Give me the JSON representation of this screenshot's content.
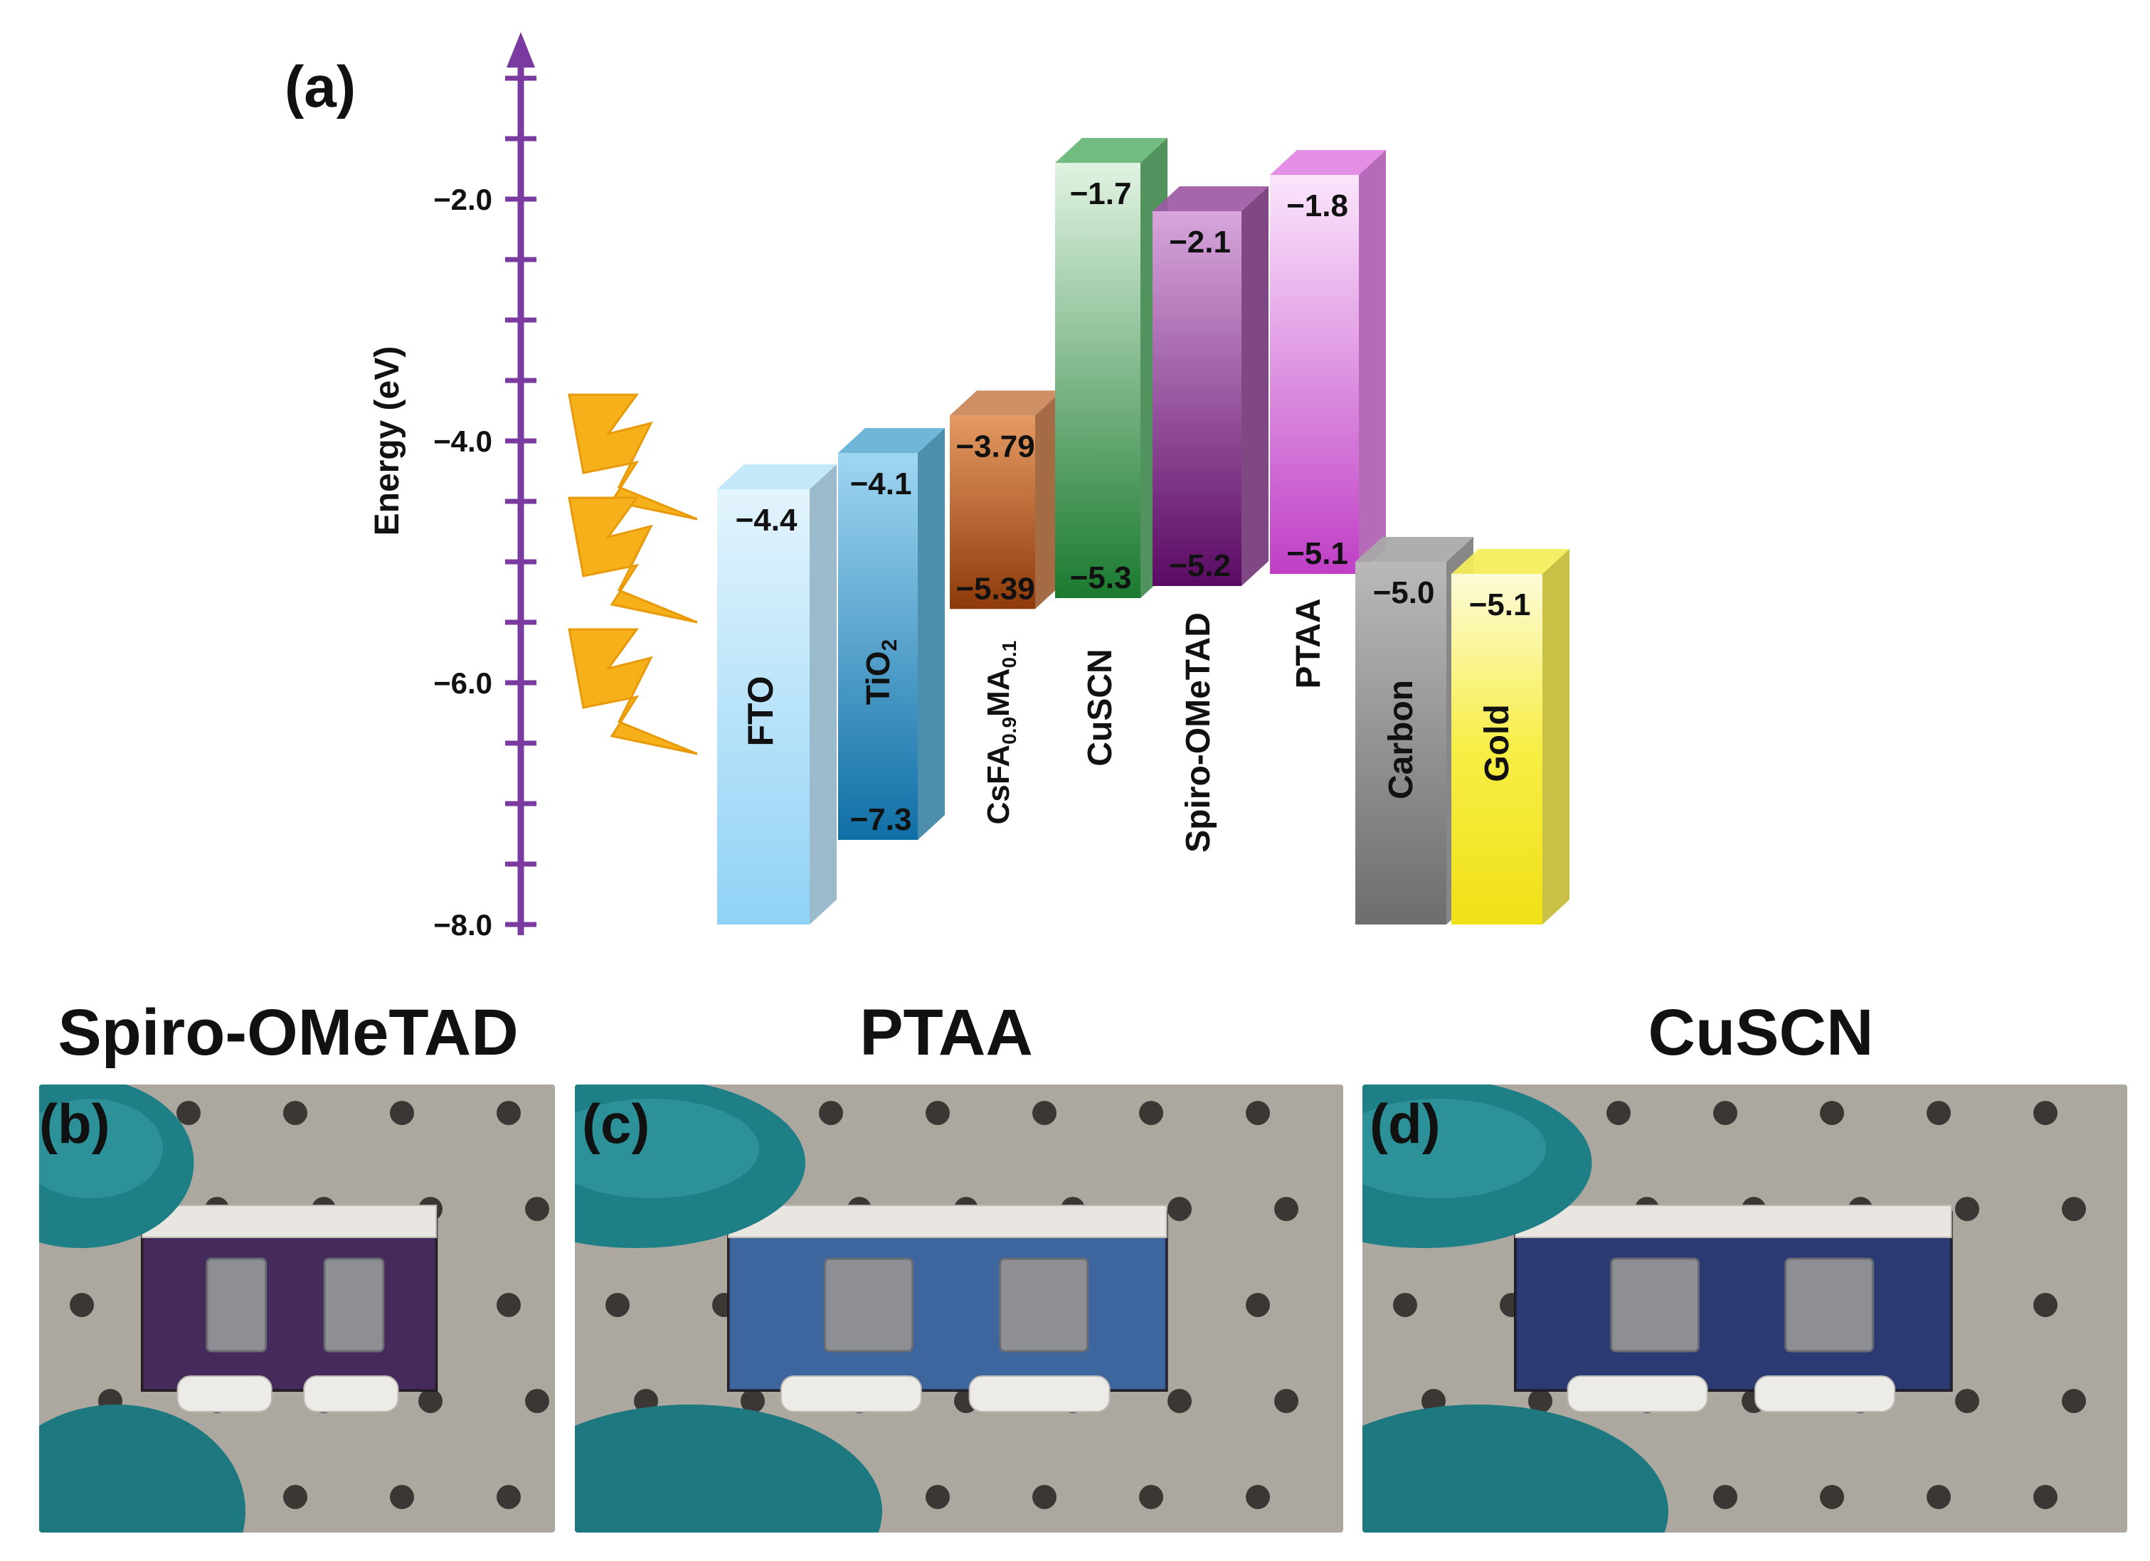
{
  "figure": {
    "panel_a_label": "(a)",
    "axis": {
      "label": "Energy (eV)",
      "ticks": [
        -2.0,
        -4.0,
        -6.0,
        -8.0
      ],
      "tick_labels": [
        "−2.0",
        "−4.0",
        "−6.0",
        "−8.0"
      ]
    },
    "layers": [
      {
        "name": "FTO",
        "top": -4.4,
        "bottom": -8.0,
        "top_label": "−4.4",
        "bottom_label": "",
        "color": "#a8dcf7",
        "icon": "light-blue-bar"
      },
      {
        "name": "TiO2",
        "name_main": "TiO",
        "name_sub": "2",
        "top": -4.1,
        "bottom": -7.3,
        "top_label": "−4.1",
        "bottom_label": "−7.3",
        "color": "#2b93c6"
      },
      {
        "name": "CsFA0.9MA0.1",
        "name_parts": [
          "CsFA",
          "0.9",
          "MA",
          "0.1"
        ],
        "top": -3.79,
        "bottom": -5.39,
        "top_label": "−3.79",
        "bottom_label": "−5.39",
        "color": "#b85a1c"
      },
      {
        "name": "CuSCN",
        "top": -1.7,
        "bottom": -5.3,
        "top_label": "−1.7",
        "bottom_label": "−5.3",
        "color": "#2f9a45"
      },
      {
        "name": "Spiro-OMeTAD",
        "top": -2.1,
        "bottom": -5.2,
        "top_label": "−2.1",
        "bottom_label": "−5.2",
        "color": "#7a1f82"
      },
      {
        "name": "PTAA",
        "top": -1.8,
        "bottom": -5.1,
        "top_label": "−1.8",
        "bottom_label": "−5.1",
        "color": "#d45ad8"
      },
      {
        "name": "Carbon",
        "top": -5.0,
        "bottom": -8.0,
        "top_label": "−5.0",
        "bottom_label": "",
        "color": "#8a8788"
      },
      {
        "name": "Gold",
        "top": -5.1,
        "bottom": -8.0,
        "top_label": "−5.1",
        "bottom_label": "",
        "color": "#f2e61c"
      }
    ],
    "light_icon": "lightning-bolt-icon",
    "colors": {
      "axis": "#7b3aa0",
      "lightning": "#f5b01a"
    }
  },
  "photos": [
    {
      "title": "Spiro-OMeTAD",
      "letter": "(b)",
      "film_color": "#3a2a6a",
      "tint": "#5a2e3e"
    },
    {
      "title": "PTAA",
      "letter": "(c)",
      "film_color": "#3d6aa8",
      "tint": "#3f5f8f"
    },
    {
      "title": "CuSCN",
      "letter": "(d)",
      "film_color": "#2c3b7a",
      "tint": "#2e3a66"
    }
  ]
}
